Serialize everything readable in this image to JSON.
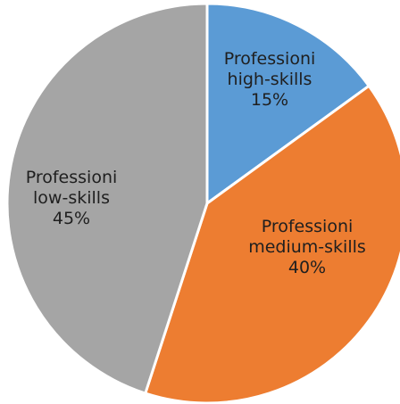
{
  "chart_data": {
    "type": "pie",
    "categories": [
      "Professioni high-skills",
      "Professioni medium-skills",
      "Professioni low-skills"
    ],
    "values": [
      15,
      40,
      45
    ],
    "colors": [
      "#5b9bd5",
      "#ed7d31",
      "#a5a5a5"
    ],
    "data_labels": [
      {
        "lines": [
          "Professioni",
          "high-skills",
          "15%"
        ]
      },
      {
        "lines": [
          "Professioni",
          "medium-skills",
          "40%"
        ]
      },
      {
        "lines": [
          "Professioni",
          "low-skills",
          "45%"
        ]
      }
    ],
    "title": "",
    "legend": "none"
  }
}
